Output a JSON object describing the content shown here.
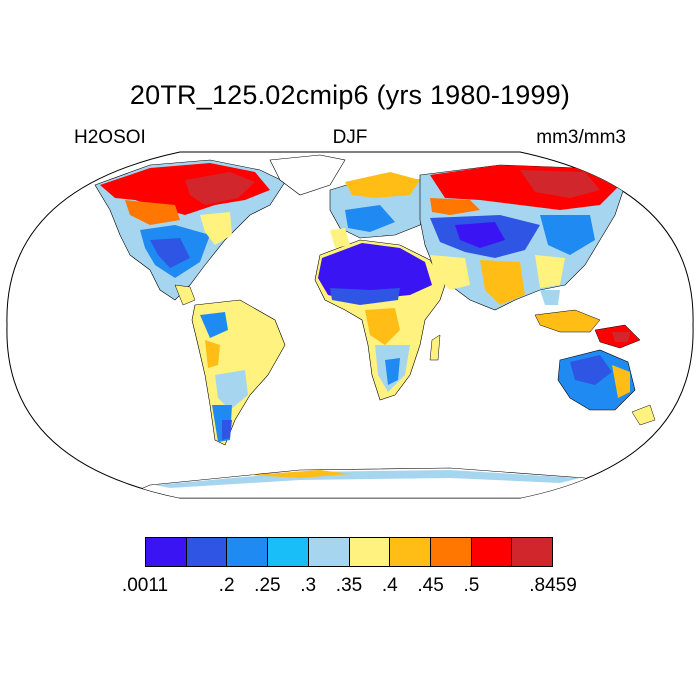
{
  "title": "20TR_125.02cmip6 (yrs 1980-1999)",
  "left_label": "H2OSOI",
  "center_label": "DJF",
  "right_label": "mm3/mm3",
  "colorbar": {
    "colors": [
      "#3a14f2",
      "#2f55e4",
      "#1f8bf2",
      "#19bdf8",
      "#a6d6ef",
      "#fff27e",
      "#ffbd16",
      "#ff7600",
      "#ff0000",
      "#d2262d"
    ],
    "labels": [
      ".0011",
      ".2",
      ".25",
      ".3",
      ".35",
      ".4",
      ".45",
      ".5",
      ".8459"
    ]
  },
  "map": {
    "projection": "robinson",
    "variable": "soil water content",
    "land_color_zones": [
      {
        "region": "Sahara / Arabia",
        "color": "#3a14f2"
      },
      {
        "region": "Central Asia",
        "color": "#2f55e4"
      },
      {
        "region": "Siberia / Canada",
        "color": "#ff0000"
      },
      {
        "region": "Amazon",
        "color": "#fff27e"
      },
      {
        "region": "Australia",
        "color": "#1f8bf2"
      }
    ]
  }
}
